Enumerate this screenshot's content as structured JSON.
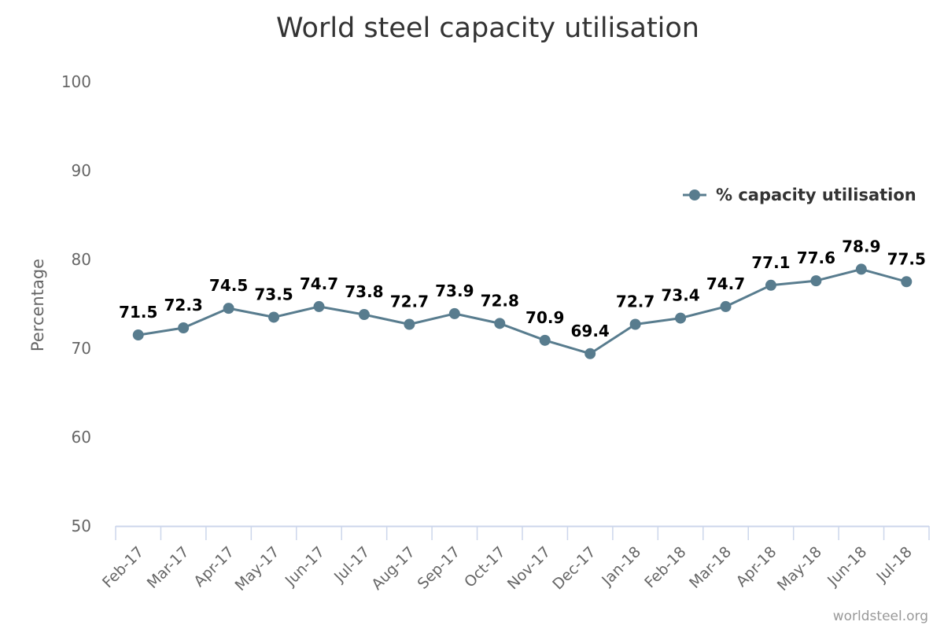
{
  "chart_data": {
    "type": "line",
    "title": "World steel capacity utilisation",
    "ylabel": "Percentage",
    "xlabel": "",
    "ylim": [
      50,
      100
    ],
    "yticks": [
      "50",
      "60",
      "70",
      "80",
      "90",
      "100"
    ],
    "grid": false,
    "legend_position": "top-right",
    "categories": [
      "Feb-17",
      "Mar-17",
      "Apr-17",
      "May-17",
      "Jun-17",
      "Jul-17",
      "Aug-17",
      "Sep-17",
      "Oct-17",
      "Nov-17",
      "Dec-17",
      "Jan-18",
      "Feb-18",
      "Mar-18",
      "Apr-18",
      "May-18",
      "Jun-18",
      "Jul-18"
    ],
    "series": [
      {
        "name": "% capacity utilisation",
        "color": "#587c8e",
        "values": [
          71.5,
          72.3,
          74.5,
          73.5,
          74.7,
          73.8,
          72.7,
          73.9,
          72.8,
          70.9,
          69.4,
          72.7,
          73.4,
          74.7,
          77.1,
          77.6,
          78.9,
          77.5
        ],
        "labels": [
          "71.5",
          "72.3",
          "74.5",
          "73.5",
          "74.7",
          "73.8",
          "72.7",
          "73.9",
          "72.8",
          "70.9",
          "69.4",
          "72.7",
          "73.4",
          "74.7",
          "77.1",
          "77.6",
          "78.9",
          "77.5"
        ]
      }
    ],
    "credit": "worldsteel.org",
    "axis_color": "#ccd6eb"
  }
}
